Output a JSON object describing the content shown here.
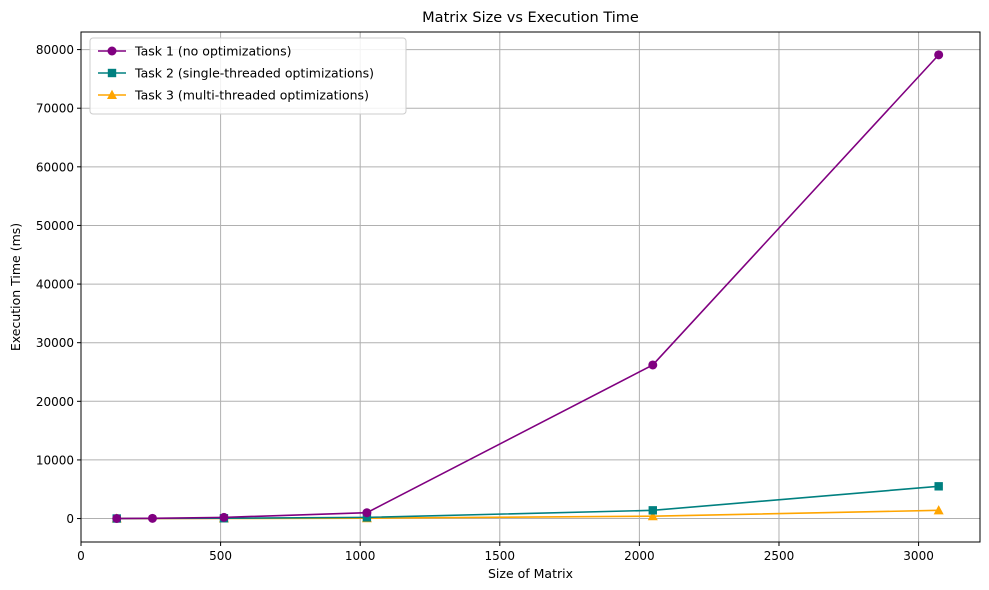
{
  "chart_data": {
    "type": "line",
    "title": "Matrix Size vs Execution Time",
    "xlabel": "Size of Matrix",
    "ylabel": "Execution Time (ms)",
    "xlim": [
      0,
      3220
    ],
    "ylim": [
      -4000,
      83000
    ],
    "xticks": [
      0,
      500,
      1000,
      1500,
      2000,
      2500,
      3000
    ],
    "yticks": [
      0,
      10000,
      20000,
      30000,
      40000,
      50000,
      60000,
      70000,
      80000
    ],
    "grid": true,
    "legend_position": "top-left",
    "series": [
      {
        "name": "Task 1 (no optimizations)",
        "color": "#800080",
        "marker": "circle",
        "x": [
          128,
          256,
          512,
          1024,
          2048,
          3072
        ],
        "y": [
          10,
          40,
          200,
          1000,
          26200,
          79100
        ]
      },
      {
        "name": "Task 2 (single-threaded optimizations)",
        "color": "#008080",
        "marker": "square",
        "x": [
          128,
          512,
          1024,
          2048,
          3072
        ],
        "y": [
          5,
          50,
          200,
          1400,
          5500
        ]
      },
      {
        "name": "Task 3 (multi-threaded optimizations)",
        "color": "#FFA500",
        "marker": "triangle",
        "x": [
          128,
          512,
          1024,
          2048,
          3072
        ],
        "y": [
          2,
          15,
          60,
          400,
          1400
        ]
      }
    ]
  }
}
